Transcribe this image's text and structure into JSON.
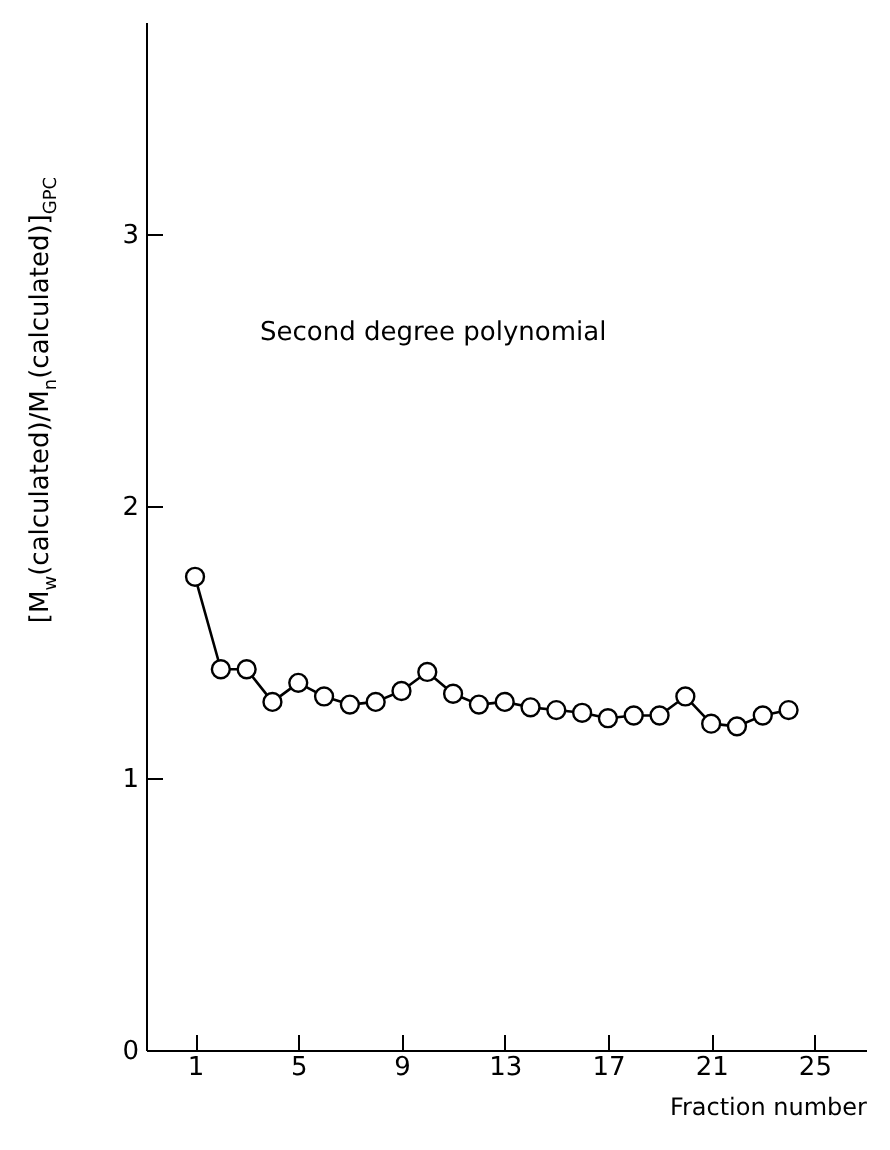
{
  "chart_data": {
    "type": "line",
    "xlabel": "Fraction number",
    "ylabel": "[M$_{w}$(calculated)/M$_{n}$(calculated)]$_{GPC}$",
    "annotations": [
      "Second degree polynomial"
    ],
    "x": [
      1,
      2,
      3,
      4,
      5,
      6,
      7,
      8,
      9,
      10,
      11,
      12,
      13,
      14,
      15,
      16,
      17,
      18,
      19,
      20,
      21,
      22,
      23,
      24
    ],
    "series": [
      {
        "color": "#000000",
        "values": [
          1.74,
          1.4,
          1.4,
          1.28,
          1.35,
          1.3,
          1.27,
          1.28,
          1.32,
          1.39,
          1.31,
          1.27,
          1.28,
          1.26,
          1.25,
          1.24,
          1.22,
          1.23,
          1.23,
          1.3,
          1.2,
          1.19,
          1.23,
          1.25
        ]
      }
    ],
    "xlim": [
      -0.9,
      27
    ],
    "xticks": [
      1,
      5,
      9,
      13,
      17,
      21,
      25
    ],
    "ylim": [
      0,
      3.78
    ],
    "yticks": [
      0,
      1,
      2,
      3
    ],
    "grid": false,
    "marker": "circle",
    "line_style": "solid"
  }
}
